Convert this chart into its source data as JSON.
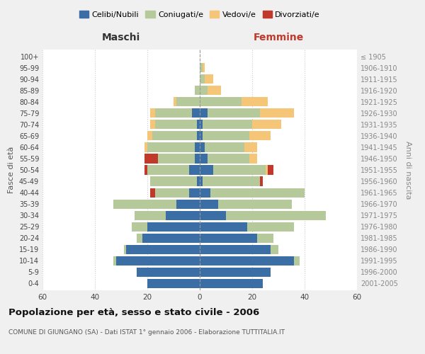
{
  "age_groups": [
    "0-4",
    "5-9",
    "10-14",
    "15-19",
    "20-24",
    "25-29",
    "30-34",
    "35-39",
    "40-44",
    "45-49",
    "50-54",
    "55-59",
    "60-64",
    "65-69",
    "70-74",
    "75-79",
    "80-84",
    "85-89",
    "90-94",
    "95-99",
    "100+"
  ],
  "birth_years": [
    "2001-2005",
    "1996-2000",
    "1991-1995",
    "1986-1990",
    "1981-1985",
    "1976-1980",
    "1971-1975",
    "1966-1970",
    "1961-1965",
    "1956-1960",
    "1951-1955",
    "1946-1950",
    "1941-1945",
    "1936-1940",
    "1931-1935",
    "1926-1930",
    "1921-1925",
    "1916-1920",
    "1911-1915",
    "1906-1910",
    "≤ 1905"
  ],
  "colors": {
    "celibi": "#3a6ea5",
    "coniugati": "#b5c99a",
    "vedovi": "#f5c578",
    "divorziati": "#c0392b"
  },
  "maschi": {
    "celibi": [
      20,
      24,
      32,
      28,
      22,
      20,
      13,
      9,
      4,
      1,
      4,
      2,
      2,
      1,
      1,
      3,
      0,
      0,
      0,
      0,
      0
    ],
    "coniugati": [
      0,
      0,
      1,
      1,
      2,
      6,
      12,
      24,
      13,
      18,
      16,
      14,
      18,
      17,
      16,
      14,
      9,
      2,
      0,
      0,
      0
    ],
    "vedovi": [
      0,
      0,
      0,
      0,
      0,
      0,
      0,
      0,
      0,
      0,
      0,
      0,
      1,
      2,
      2,
      2,
      1,
      0,
      0,
      0,
      0
    ],
    "divorziati": [
      0,
      0,
      0,
      0,
      0,
      0,
      0,
      0,
      2,
      0,
      1,
      5,
      0,
      0,
      0,
      0,
      0,
      0,
      0,
      0,
      0
    ]
  },
  "femmine": {
    "celibi": [
      24,
      27,
      36,
      27,
      22,
      18,
      10,
      7,
      4,
      1,
      5,
      3,
      2,
      1,
      1,
      3,
      0,
      0,
      0,
      0,
      0
    ],
    "coniugati": [
      0,
      0,
      2,
      3,
      6,
      18,
      38,
      28,
      36,
      22,
      20,
      16,
      15,
      18,
      19,
      20,
      16,
      3,
      2,
      1,
      0
    ],
    "vedovi": [
      0,
      0,
      0,
      0,
      0,
      0,
      0,
      0,
      0,
      0,
      1,
      3,
      5,
      8,
      11,
      13,
      10,
      5,
      3,
      1,
      0
    ],
    "divorziati": [
      0,
      0,
      0,
      0,
      0,
      0,
      0,
      0,
      0,
      1,
      2,
      0,
      0,
      0,
      0,
      0,
      0,
      0,
      0,
      0,
      0
    ]
  },
  "title": "Popolazione per età, sesso e stato civile - 2006",
  "subtitle": "COMUNE DI GIUNGANO (SA) - Dati ISTAT 1° gennaio 2006 - Elaborazione TUTTITALIA.IT",
  "xlabel_left": "Maschi",
  "xlabel_right": "Femmine",
  "ylabel_left": "Fasce di età",
  "ylabel_right": "Anni di nascita",
  "xlim": 60,
  "legend_labels": [
    "Celibi/Nubili",
    "Coniugati/e",
    "Vedovi/e",
    "Divorziati/e"
  ],
  "bg_color": "#f0f0f0",
  "plot_bg": "#ffffff",
  "grid_color": "#cccccc"
}
